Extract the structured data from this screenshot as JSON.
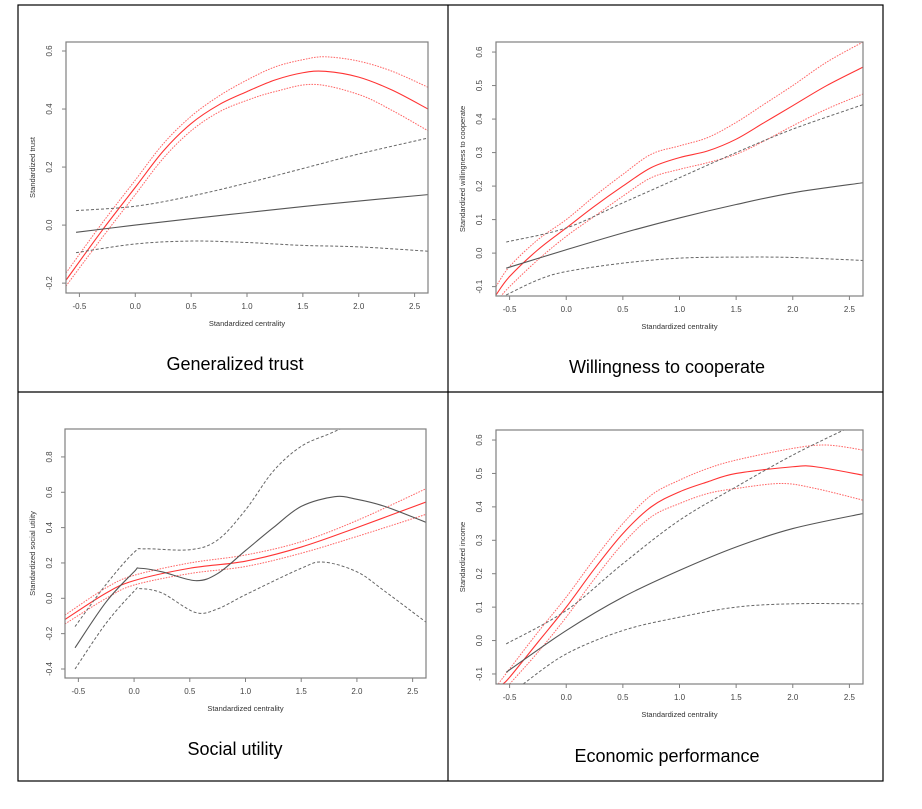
{
  "colors": {
    "model_line": "#ff3333",
    "model_ci": "#ff6666",
    "baseline_line": "#555555",
    "baseline_ci": "#666666",
    "frame": "#000000",
    "axis_box": "#808080"
  },
  "chart_data": [
    {
      "type": "line",
      "title": "Generalized trust",
      "xlabel": "Standardized centrality",
      "ylabel": "Standardized trust",
      "xlim": [
        -0.62,
        2.62
      ],
      "ylim": [
        -0.234,
        0.631
      ],
      "xticks": [
        -0.5,
        0.0,
        0.5,
        1.0,
        1.5,
        2.0,
        2.5
      ],
      "xtick_labels": [
        "-0.5",
        "0.0",
        "0.5",
        "1.0",
        "1.5",
        "2.0",
        "2.5"
      ],
      "yticks": [
        -0.2,
        0.0,
        0.2,
        0.4,
        0.6
      ],
      "ytick_labels": [
        "-0.2",
        "0.0",
        "0.2",
        "0.4",
        "0.6"
      ],
      "grid": false,
      "series": [
        {
          "name": "red-fit",
          "color": "#ff3333",
          "style": "solid",
          "x": [
            -0.62,
            -0.3,
            0.0,
            0.25,
            0.5,
            0.75,
            1.0,
            1.25,
            1.5,
            1.7,
            2.0,
            2.3,
            2.62
          ],
          "y": [
            -0.19,
            -0.02,
            0.13,
            0.255,
            0.35,
            0.415,
            0.46,
            0.5,
            0.525,
            0.53,
            0.51,
            0.465,
            0.4
          ]
        },
        {
          "name": "red-upper",
          "color": "#ff6666",
          "style": "dotted",
          "x": [
            -0.62,
            -0.3,
            0.0,
            0.25,
            0.5,
            0.75,
            1.0,
            1.25,
            1.5,
            1.7,
            2.0,
            2.3,
            2.62
          ],
          "y": [
            -0.165,
            0.005,
            0.155,
            0.28,
            0.375,
            0.445,
            0.5,
            0.545,
            0.57,
            0.58,
            0.565,
            0.53,
            0.475
          ]
        },
        {
          "name": "red-lower",
          "color": "#ff6666",
          "style": "dotted",
          "x": [
            -0.62,
            -0.3,
            0.0,
            0.25,
            0.5,
            0.75,
            1.0,
            1.25,
            1.6,
            2.0,
            2.3,
            2.62
          ],
          "y": [
            -0.21,
            -0.045,
            0.105,
            0.23,
            0.325,
            0.39,
            0.43,
            0.46,
            0.485,
            0.45,
            0.395,
            0.325
          ]
        },
        {
          "name": "black-fit",
          "color": "#555555",
          "style": "solid",
          "x": [
            -0.53,
            0.0,
            0.5,
            1.0,
            1.5,
            2.0,
            2.62
          ],
          "y": [
            -0.025,
            0.0,
            0.022,
            0.043,
            0.064,
            0.083,
            0.105
          ]
        },
        {
          "name": "black-upper",
          "color": "#666666",
          "style": "dashed",
          "x": [
            -0.53,
            0.0,
            0.5,
            1.0,
            1.5,
            2.0,
            2.62
          ],
          "y": [
            0.05,
            0.065,
            0.1,
            0.145,
            0.195,
            0.245,
            0.3
          ]
        },
        {
          "name": "black-lower",
          "color": "#666666",
          "style": "dashed",
          "x": [
            -0.53,
            0.0,
            0.5,
            1.0,
            1.5,
            2.0,
            2.62
          ],
          "y": [
            -0.095,
            -0.065,
            -0.055,
            -0.06,
            -0.07,
            -0.075,
            -0.09
          ]
        }
      ]
    },
    {
      "type": "line",
      "title": "Willingness to cooperate",
      "xlabel": "Standardized centrality",
      "ylabel": "Standardized willingness to cooperate",
      "xlim": [
        -0.62,
        2.62
      ],
      "ylim": [
        -0.128,
        0.63
      ],
      "xticks": [
        -0.5,
        0.0,
        0.5,
        1.0,
        1.5,
        2.0,
        2.5
      ],
      "xtick_labels": [
        "-0.5",
        "0.0",
        "0.5",
        "1.0",
        "1.5",
        "2.0",
        "2.5"
      ],
      "yticks": [
        -0.1,
        0.0,
        0.1,
        0.2,
        0.3,
        0.4,
        0.5,
        0.6
      ],
      "ytick_labels": [
        "-0.1",
        "0.0",
        "0.1",
        "0.2",
        "0.3",
        "0.4",
        "0.5",
        "0.6"
      ],
      "grid": false,
      "series": [
        {
          "name": "red-fit",
          "color": "#ff3333",
          "style": "solid",
          "x": [
            -0.62,
            -0.5,
            -0.25,
            0.0,
            0.25,
            0.5,
            0.75,
            1.0,
            1.25,
            1.5,
            1.75,
            2.0,
            2.3,
            2.62
          ],
          "y": [
            -0.125,
            -0.07,
            0.01,
            0.075,
            0.14,
            0.2,
            0.255,
            0.285,
            0.305,
            0.34,
            0.39,
            0.44,
            0.5,
            0.555
          ]
        },
        {
          "name": "red-upper",
          "color": "#ff6666",
          "style": "dotted",
          "x": [
            -0.62,
            -0.5,
            -0.25,
            0.0,
            0.25,
            0.5,
            0.75,
            1.0,
            1.25,
            1.5,
            1.75,
            2.0,
            2.3,
            2.62
          ],
          "y": [
            -0.1,
            -0.04,
            0.04,
            0.1,
            0.17,
            0.235,
            0.295,
            0.32,
            0.345,
            0.39,
            0.445,
            0.5,
            0.57,
            0.63
          ]
        },
        {
          "name": "red-lower",
          "color": "#ff6666",
          "style": "dotted",
          "x": [
            -0.58,
            -0.5,
            -0.25,
            0.0,
            0.25,
            0.5,
            0.75,
            1.0,
            1.25,
            1.5,
            1.75,
            2.0,
            2.3,
            2.62
          ],
          "y": [
            -0.13,
            -0.1,
            -0.02,
            0.05,
            0.11,
            0.17,
            0.225,
            0.25,
            0.27,
            0.295,
            0.335,
            0.38,
            0.43,
            0.475
          ]
        },
        {
          "name": "black-fit",
          "color": "#555555",
          "style": "solid",
          "x": [
            -0.53,
            0.0,
            0.5,
            1.0,
            1.5,
            2.0,
            2.62
          ],
          "y": [
            -0.045,
            0.01,
            0.06,
            0.105,
            0.145,
            0.18,
            0.21
          ]
        },
        {
          "name": "black-upper",
          "color": "#666666",
          "style": "dashed",
          "x": [
            -0.53,
            0.0,
            0.5,
            1.0,
            1.5,
            2.0,
            2.62
          ],
          "y": [
            0.033,
            0.075,
            0.15,
            0.225,
            0.3,
            0.37,
            0.443
          ]
        },
        {
          "name": "black-lower",
          "color": "#666666",
          "style": "dashed",
          "x": [
            -0.53,
            -0.25,
            0.0,
            0.5,
            1.0,
            1.5,
            2.0,
            2.62
          ],
          "y": [
            -0.125,
            -0.08,
            -0.055,
            -0.03,
            -0.015,
            -0.012,
            -0.013,
            -0.022
          ]
        }
      ]
    },
    {
      "type": "line",
      "title": "Social utility",
      "xlabel": "Standardized centrality",
      "ylabel": "Standardized social utility",
      "xlim": [
        -0.62,
        2.62
      ],
      "ylim": [
        -0.451,
        0.958
      ],
      "xticks": [
        -0.5,
        0.0,
        0.5,
        1.0,
        1.5,
        2.0,
        2.5
      ],
      "xtick_labels": [
        "-0.5",
        "0.0",
        "0.5",
        "1.0",
        "1.5",
        "2.0",
        "2.5"
      ],
      "yticks": [
        -0.4,
        -0.2,
        0.0,
        0.2,
        0.4,
        0.6,
        0.8
      ],
      "ytick_labels": [
        "-0.4",
        "-0.2",
        "0.0",
        "0.2",
        "0.4",
        "0.6",
        "0.8"
      ],
      "grid": false,
      "series": [
        {
          "name": "red-fit",
          "color": "#ff3333",
          "style": "solid",
          "x": [
            -0.62,
            -0.25,
            0.0,
            0.5,
            1.0,
            1.5,
            2.0,
            2.62
          ],
          "y": [
            -0.12,
            0.03,
            0.1,
            0.17,
            0.21,
            0.29,
            0.4,
            0.545
          ]
        },
        {
          "name": "red-upper",
          "color": "#ff6666",
          "style": "dotted",
          "x": [
            -0.62,
            -0.25,
            0.0,
            0.5,
            1.0,
            1.5,
            2.0,
            2.62
          ],
          "y": [
            -0.095,
            0.06,
            0.13,
            0.2,
            0.245,
            0.32,
            0.44,
            0.62
          ]
        },
        {
          "name": "red-lower",
          "color": "#ff6666",
          "style": "dotted",
          "x": [
            -0.62,
            -0.25,
            0.0,
            0.5,
            1.0,
            1.5,
            2.0,
            2.62
          ],
          "y": [
            -0.145,
            0.0,
            0.075,
            0.14,
            0.18,
            0.255,
            0.35,
            0.475
          ]
        },
        {
          "name": "black-fit",
          "color": "#555555",
          "style": "solid",
          "x": [
            -0.53,
            -0.25,
            0.0,
            0.05,
            0.25,
            0.55,
            0.75,
            1.0,
            1.25,
            1.5,
            1.8,
            2.0,
            2.25,
            2.62
          ],
          "y": [
            -0.28,
            -0.02,
            0.15,
            0.17,
            0.15,
            0.1,
            0.14,
            0.27,
            0.4,
            0.52,
            0.575,
            0.56,
            0.52,
            0.43
          ]
        },
        {
          "name": "black-upper",
          "color": "#666666",
          "style": "dashed",
          "x": [
            -0.53,
            -0.25,
            0.0,
            0.1,
            0.5,
            0.75,
            1.0,
            1.25,
            1.5,
            1.75,
            1.85
          ],
          "y": [
            -0.16,
            0.08,
            0.26,
            0.28,
            0.275,
            0.33,
            0.5,
            0.72,
            0.86,
            0.93,
            0.958
          ]
        },
        {
          "name": "black-lower",
          "color": "#666666",
          "style": "dashed",
          "x": [
            -0.53,
            -0.25,
            0.0,
            0.05,
            0.25,
            0.55,
            0.75,
            1.0,
            1.5,
            1.7,
            2.0,
            2.25,
            2.62
          ],
          "y": [
            -0.4,
            -0.14,
            0.04,
            0.055,
            0.03,
            -0.08,
            -0.06,
            0.02,
            0.17,
            0.205,
            0.15,
            0.04,
            -0.135
          ]
        }
      ]
    },
    {
      "type": "line",
      "title": "Economic performance",
      "xlabel": "Standardized centrality",
      "ylabel": "Standardized income",
      "xlim": [
        -0.62,
        2.62
      ],
      "ylim": [
        -0.13,
        0.63
      ],
      "xticks": [
        -0.5,
        0.0,
        0.5,
        1.0,
        1.5,
        2.0,
        2.5
      ],
      "xtick_labels": [
        "-0.5",
        "0.0",
        "0.5",
        "1.0",
        "1.5",
        "2.0",
        "2.5"
      ],
      "yticks": [
        -0.1,
        0.0,
        0.1,
        0.2,
        0.3,
        0.4,
        0.5,
        0.6
      ],
      "ytick_labels": [
        "-0.1",
        "0.0",
        "0.1",
        "0.2",
        "0.3",
        "0.4",
        "0.5",
        "0.6"
      ],
      "grid": false,
      "series": [
        {
          "name": "red-fit",
          "color": "#ff3333",
          "style": "solid",
          "x": [
            -0.56,
            -0.5,
            -0.25,
            0.0,
            0.25,
            0.5,
            0.75,
            1.0,
            1.25,
            1.5,
            2.0,
            2.2,
            2.62
          ],
          "y": [
            -0.13,
            -0.11,
            -0.005,
            0.1,
            0.215,
            0.32,
            0.4,
            0.445,
            0.475,
            0.5,
            0.52,
            0.52,
            0.495
          ]
        },
        {
          "name": "red-upper",
          "color": "#ff6666",
          "style": "dotted",
          "x": [
            -0.6,
            -0.5,
            -0.25,
            0.0,
            0.25,
            0.5,
            0.75,
            1.0,
            1.25,
            1.5,
            2.0,
            2.3,
            2.62
          ],
          "y": [
            -0.13,
            -0.085,
            0.025,
            0.13,
            0.245,
            0.35,
            0.435,
            0.48,
            0.515,
            0.54,
            0.575,
            0.585,
            0.57
          ]
        },
        {
          "name": "red-lower",
          "color": "#ff6666",
          "style": "dotted",
          "x": [
            -0.5,
            -0.25,
            0.0,
            0.25,
            0.5,
            0.75,
            1.0,
            1.25,
            1.5,
            1.9,
            2.2,
            2.62
          ],
          "y": [
            -0.13,
            -0.035,
            0.07,
            0.185,
            0.29,
            0.37,
            0.41,
            0.44,
            0.455,
            0.47,
            0.455,
            0.42
          ]
        },
        {
          "name": "black-fit",
          "color": "#555555",
          "style": "solid",
          "x": [
            -0.53,
            0.0,
            0.5,
            1.0,
            1.5,
            2.0,
            2.62
          ],
          "y": [
            -0.095,
            0.03,
            0.13,
            0.21,
            0.28,
            0.335,
            0.38
          ]
        },
        {
          "name": "black-upper",
          "color": "#666666",
          "style": "dashed",
          "x": [
            -0.53,
            0.0,
            0.5,
            1.0,
            1.5,
            2.0,
            2.45
          ],
          "y": [
            -0.01,
            0.09,
            0.23,
            0.36,
            0.46,
            0.555,
            0.63
          ]
        },
        {
          "name": "black-lower",
          "color": "#666666",
          "style": "dashed",
          "x": [
            -0.38,
            0.0,
            0.5,
            1.0,
            1.5,
            2.0,
            2.62
          ],
          "y": [
            -0.13,
            -0.04,
            0.03,
            0.07,
            0.1,
            0.11,
            0.11
          ]
        }
      ]
    }
  ]
}
